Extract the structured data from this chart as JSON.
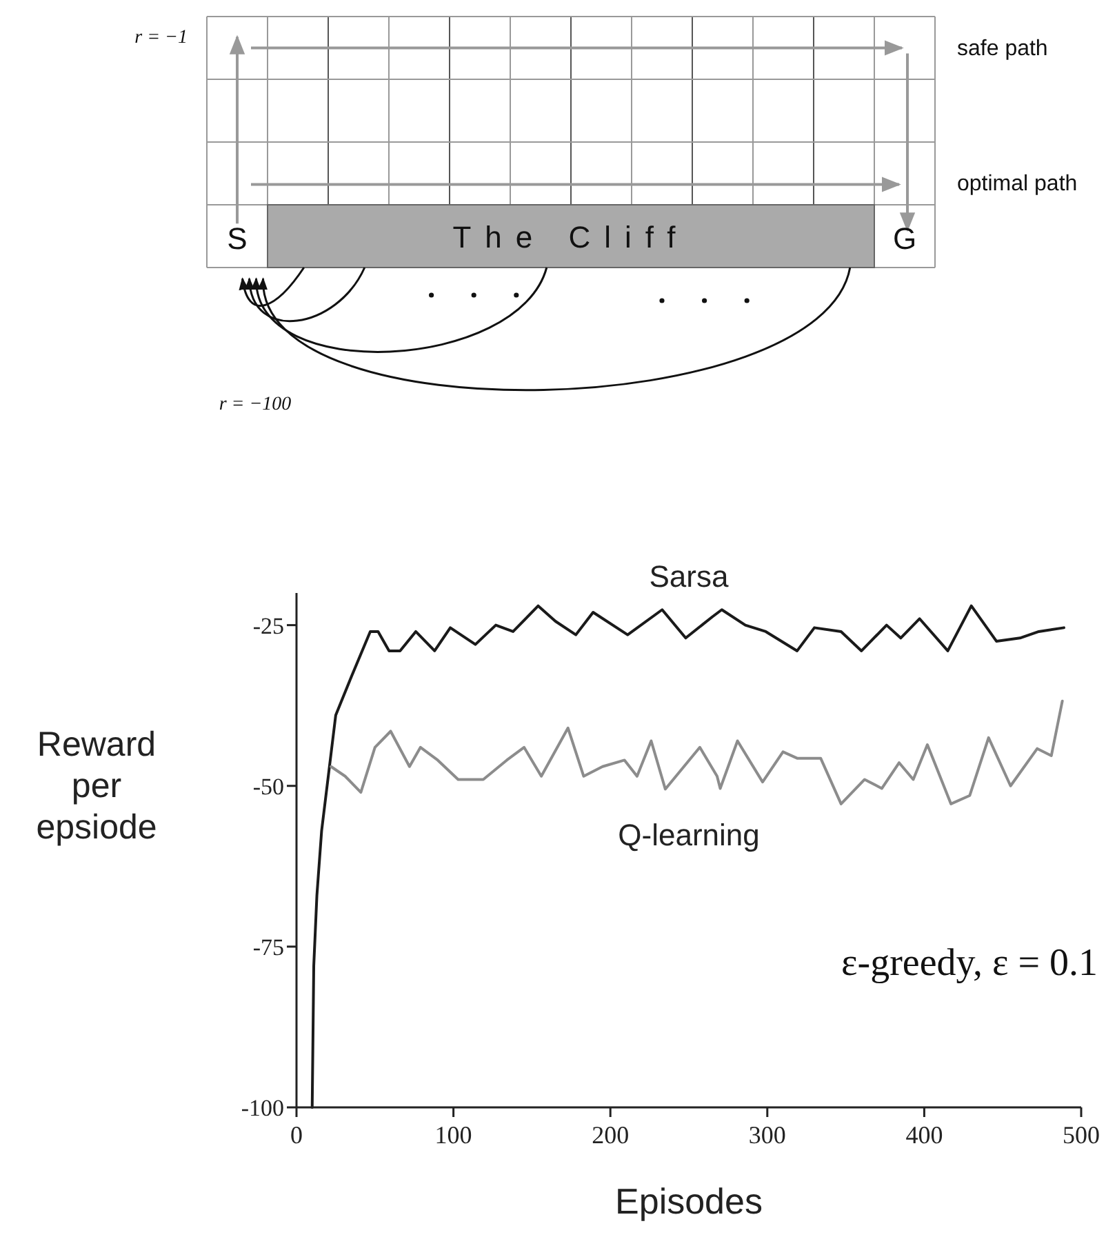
{
  "chart_data": {
    "type": "line",
    "xlabel": "Episodes",
    "ylabel": "Reward per epsiode",
    "xlim": [
      0,
      500
    ],
    "xticks": [
      0,
      100,
      200,
      300,
      400,
      500
    ],
    "ylim": [
      -100,
      -20
    ],
    "yticks": [
      -100,
      -75,
      -50,
      -25
    ],
    "grid": false,
    "marker": "none",
    "line_style": "solid",
    "series": [
      {
        "name": "Sarsa",
        "color": "#1a1a1a",
        "x": [
          10,
          11,
          13,
          16,
          25,
          35,
          47,
          52,
          59,
          66,
          76,
          88,
          98,
          114,
          127,
          138,
          154,
          165,
          178,
          189,
          211,
          233,
          248,
          265,
          271,
          286,
          299,
          319,
          330,
          347,
          360,
          376,
          385,
          397,
          415,
          430,
          446,
          461,
          473,
          489
        ],
        "values": [
          -100,
          -78,
          -67,
          -57,
          -39,
          -33,
          -26,
          -26,
          -29,
          -29,
          -26,
          -29,
          -25.4,
          -28,
          -25,
          -26,
          -22,
          -24.4,
          -26.5,
          -23,
          -26.5,
          -22.6,
          -27,
          -23.7,
          -22.6,
          -25,
          -26,
          -29,
          -25.4,
          -26,
          -29,
          -25,
          -27,
          -24,
          -29,
          -22,
          -27.5,
          -27,
          -26,
          -25.4
        ]
      },
      {
        "name": "Q-learning",
        "color": "#8c8c8c",
        "x": [
          22,
          31,
          41,
          50,
          60,
          72,
          79,
          90,
          103,
          119,
          134,
          145,
          156,
          173,
          183,
          195,
          209,
          217,
          226,
          235,
          257,
          268,
          270,
          281,
          297,
          310,
          319,
          334,
          347,
          362,
          373,
          384,
          393,
          402,
          417,
          429,
          441,
          455,
          472,
          481,
          488
        ],
        "values": [
          -47,
          -48.5,
          -51,
          -44,
          -41.5,
          -47,
          -44,
          -46,
          -49,
          -49,
          -46,
          -44,
          -48.5,
          -41,
          -48.5,
          -47,
          -46,
          -48.5,
          -43,
          -50.5,
          -44,
          -48.5,
          -50.4,
          -43,
          -49.4,
          -44.7,
          -45.7,
          -45.7,
          -52.8,
          -49,
          -50.4,
          -46.4,
          -49,
          -43.6,
          -52.8,
          -51.5,
          -42.5,
          -50,
          -44.2,
          -45.3,
          -36.8
        ]
      }
    ],
    "annotations": [
      "ε-greedy, ε = 0.1",
      "r = −1",
      "safe path",
      "optimal path",
      "S",
      "The Cliff",
      "G",
      "r = −100"
    ]
  }
}
